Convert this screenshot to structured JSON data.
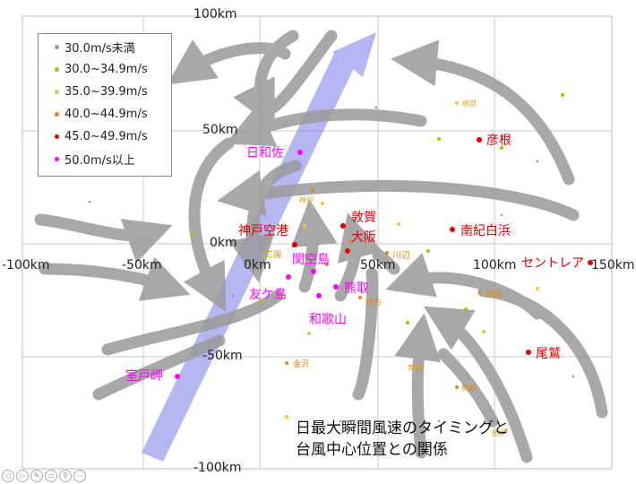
{
  "axes": {
    "x_ticks": [
      "-100km",
      "-50km",
      "0km",
      "50km",
      "100km",
      "150km"
    ],
    "y_ticks": [
      "100km",
      "50km",
      "0km",
      "-50km",
      "-100km"
    ]
  },
  "legend": {
    "items": [
      {
        "label": "30.0m/s未満",
        "color": "#9a9a9a"
      },
      {
        "label": "30.0~34.9m/s",
        "color": "#b8b800"
      },
      {
        "label": "35.0~39.9m/s",
        "color": "#f0c040"
      },
      {
        "label": "40.0~44.9m/s",
        "color": "#e08a10"
      },
      {
        "label": "45.0~49.9m/s",
        "color": "#e00000"
      },
      {
        "label": "50.0m/s以上",
        "color": "#ff00ff"
      }
    ]
  },
  "stations_major": [
    {
      "name": "彦根",
      "color": "#e00000"
    },
    {
      "name": "日和佐",
      "color": "#ff00ff"
    },
    {
      "name": "敦賀",
      "color": "#e00000"
    },
    {
      "name": "大阪",
      "color": "#e00000"
    },
    {
      "name": "神戸空港",
      "color": "#e00000"
    },
    {
      "name": "南紀白浜",
      "color": "#e00000"
    },
    {
      "name": "関空島",
      "color": "#ff00ff"
    },
    {
      "name": "セントレア",
      "color": "#e00000"
    },
    {
      "name": "熊取",
      "color": "#ff00ff"
    },
    {
      "name": "友ケ島",
      "color": "#ff00ff"
    },
    {
      "name": "和歌山",
      "color": "#ff00ff"
    },
    {
      "name": "尾鷲",
      "color": "#e00000"
    },
    {
      "name": "室戸岬",
      "color": "#ff00ff"
    }
  ],
  "stations_minor": [
    "神戸",
    "三国",
    "川辺",
    "風屋",
    "金沢",
    "枚方",
    "熊野",
    "潮岬",
    "綾部",
    "舞鶴"
  ],
  "caption": {
    "line1": "日最大瞬間風速のタイミングと",
    "line2": "台風中心位置との関係"
  }
}
